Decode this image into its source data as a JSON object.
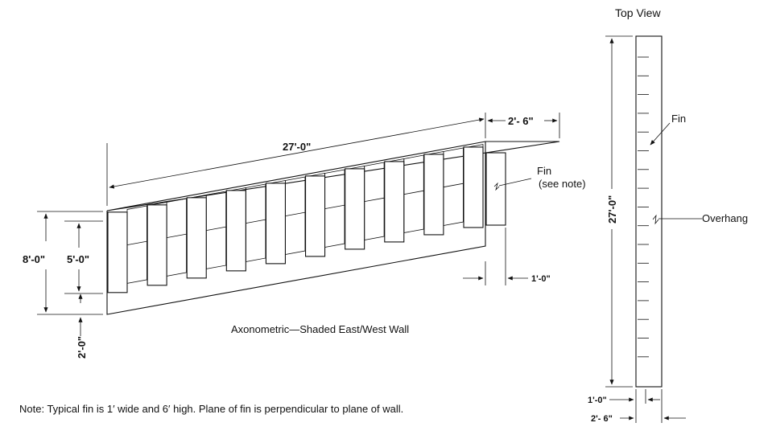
{
  "labels": {
    "top_view": "Top View",
    "length_27": "27'-0\"",
    "depth_2_6": "2'- 6\"",
    "fin_see_note_line1": "Fin",
    "fin_see_note_line2": "(see note)",
    "height_8": "8'-0\"",
    "window_5": "5'-0\"",
    "sill_2": "2'-0\"",
    "fin_width_1": "1'-0\"",
    "caption": "Axonometric—Shaded East/West Wall",
    "top_fin": "Fin",
    "top_length_27": "27'-0\"",
    "overhang": "Overhang",
    "top_fin_width_1": "1'-0\"",
    "top_depth_2_6": "2'- 6\""
  },
  "note": "Note: Typical fin is 1′ wide and 6′ high.  Plane of fin is perpendicular to plane of wall."
}
